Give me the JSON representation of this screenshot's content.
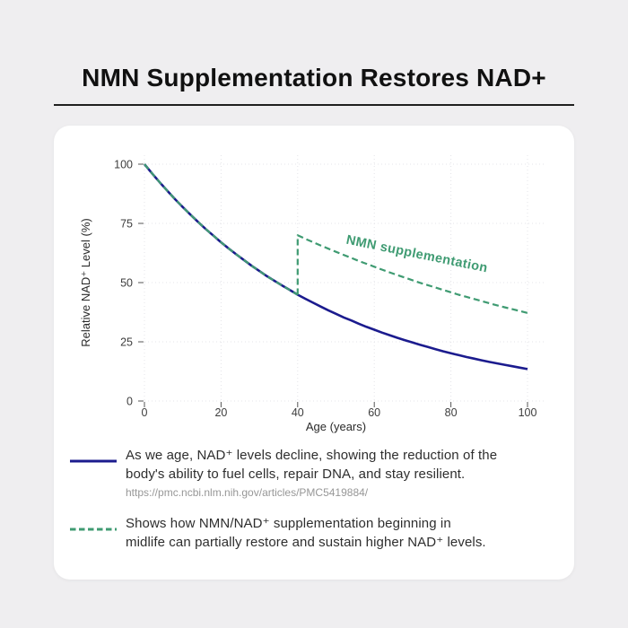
{
  "header": {
    "title": "NMN Supplementation Restores NAD+"
  },
  "colors": {
    "page_bg": "#efeef0",
    "card_bg": "#ffffff",
    "title": "#111111",
    "rule": "#1f1f1f",
    "decline": "#1b1b8e",
    "supplement": "#3f9b72",
    "grid": "#e4e4e8",
    "tick_mark": "#555555",
    "tick": "#3d3d3d",
    "axis_label": "#2a2a2a",
    "body_text": "#2e2e2e",
    "link_text": "#979797"
  },
  "chart_data": {
    "type": "line",
    "title": "",
    "xlabel": "Age (years)",
    "ylabel": "Relative NAD⁺ Level (%)",
    "xlim": [
      0,
      100
    ],
    "ylim": [
      0,
      100
    ],
    "xticks": [
      0,
      20,
      40,
      60,
      80,
      100
    ],
    "yticks": [
      0,
      25,
      50,
      75,
      100
    ],
    "grid": true,
    "legend_position": "below",
    "annotation": {
      "text": "NMN supplementation",
      "x": 52.5,
      "y": 66.5,
      "rotation_deg": 11.5
    },
    "series": [
      {
        "name": "natural-decline",
        "label": "Natural NAD+ decline with age",
        "style": "solid",
        "color_key": "decline",
        "width": 2.6,
        "points": [
          [
            0,
            100
          ],
          [
            2,
            96.1
          ],
          [
            4,
            92.3
          ],
          [
            6,
            88.7
          ],
          [
            8,
            85.2
          ],
          [
            10,
            81.9
          ],
          [
            12,
            78.7
          ],
          [
            14,
            75.6
          ],
          [
            16,
            72.6
          ],
          [
            18,
            69.8
          ],
          [
            20,
            67
          ],
          [
            22,
            64.4
          ],
          [
            24,
            61.9
          ],
          [
            26,
            59.5
          ],
          [
            28,
            57.1
          ],
          [
            30,
            54.9
          ],
          [
            32,
            52.7
          ],
          [
            34,
            50.7
          ],
          [
            36,
            48.7
          ],
          [
            38,
            46.8
          ],
          [
            40,
            44.9
          ],
          [
            42,
            43.2
          ],
          [
            44,
            41.5
          ],
          [
            46,
            39.9
          ],
          [
            48,
            38.3
          ],
          [
            50,
            36.8
          ],
          [
            52,
            35.3
          ],
          [
            54,
            34
          ],
          [
            56,
            32.6
          ],
          [
            58,
            31.3
          ],
          [
            60,
            30.1
          ],
          [
            62,
            28.9
          ],
          [
            64,
            27.8
          ],
          [
            66,
            26.7
          ],
          [
            68,
            25.7
          ],
          [
            70,
            24.7
          ],
          [
            72,
            23.7
          ],
          [
            74,
            22.8
          ],
          [
            76,
            21.9
          ],
          [
            78,
            21
          ],
          [
            80,
            20.2
          ],
          [
            82,
            19.4
          ],
          [
            84,
            18.6
          ],
          [
            86,
            17.9
          ],
          [
            88,
            17.2
          ],
          [
            90,
            16.5
          ],
          [
            92,
            15.9
          ],
          [
            94,
            15.3
          ],
          [
            96,
            14.7
          ],
          [
            98,
            14.1
          ],
          [
            100,
            13.5
          ]
        ]
      },
      {
        "name": "supplement-overlay-pre-midlife",
        "label": "NMN track overlapping natural decline before age 40",
        "style": "dashed",
        "color_key": "supplement",
        "width": 2.2,
        "points": [
          [
            0,
            100
          ],
          [
            2,
            96.1
          ],
          [
            4,
            92.3
          ],
          [
            6,
            88.7
          ],
          [
            8,
            85.2
          ],
          [
            10,
            81.9
          ],
          [
            12,
            78.7
          ],
          [
            14,
            75.6
          ],
          [
            16,
            72.6
          ],
          [
            18,
            69.8
          ],
          [
            20,
            67
          ],
          [
            22,
            64.4
          ],
          [
            24,
            61.9
          ],
          [
            26,
            59.5
          ],
          [
            28,
            57.1
          ],
          [
            30,
            54.9
          ],
          [
            32,
            52.7
          ],
          [
            34,
            50.7
          ],
          [
            36,
            48.7
          ],
          [
            38,
            46.8
          ],
          [
            40,
            44.9
          ]
        ]
      },
      {
        "name": "nmn-supplementation",
        "label": "NMN supplementation from age 40",
        "style": "dashed",
        "color_key": "supplement",
        "width": 2.2,
        "points": [
          [
            40,
            44.9
          ],
          [
            40,
            70
          ],
          [
            42,
            68.5
          ],
          [
            44,
            67.1
          ],
          [
            46,
            65.7
          ],
          [
            48,
            64.3
          ],
          [
            50,
            63
          ],
          [
            52,
            61.7
          ],
          [
            54,
            60.4
          ],
          [
            56,
            59.1
          ],
          [
            58,
            57.9
          ],
          [
            60,
            56.7
          ],
          [
            62,
            55.5
          ],
          [
            64,
            54.3
          ],
          [
            66,
            53.2
          ],
          [
            68,
            52.1
          ],
          [
            70,
            51
          ],
          [
            72,
            49.9
          ],
          [
            74,
            48.9
          ],
          [
            76,
            47.9
          ],
          [
            78,
            46.9
          ],
          [
            80,
            45.9
          ],
          [
            82,
            44.9
          ],
          [
            84,
            44
          ],
          [
            86,
            43.1
          ],
          [
            88,
            42.2
          ],
          [
            90,
            41.3
          ],
          [
            92,
            40.4
          ],
          [
            94,
            39.6
          ],
          [
            96,
            38.8
          ],
          [
            98,
            38
          ],
          [
            100,
            37.2
          ]
        ]
      }
    ]
  },
  "legend": [
    {
      "marker": "solid",
      "color_key": "decline",
      "lines": [
        "As we age, NAD⁺ levels decline, showing the reduction of the",
        "body's ability to fuel cells, repair DNA, and stay resilient."
      ],
      "link": "https://pmc.ncbi.nlm.nih.gov/articles/PMC5419884/"
    },
    {
      "marker": "dashed",
      "color_key": "supplement",
      "lines": [
        "Shows how NMN/NAD⁺ supplementation beginning in",
        "midlife can partially restore and sustain higher NAD⁺ levels."
      ]
    }
  ]
}
